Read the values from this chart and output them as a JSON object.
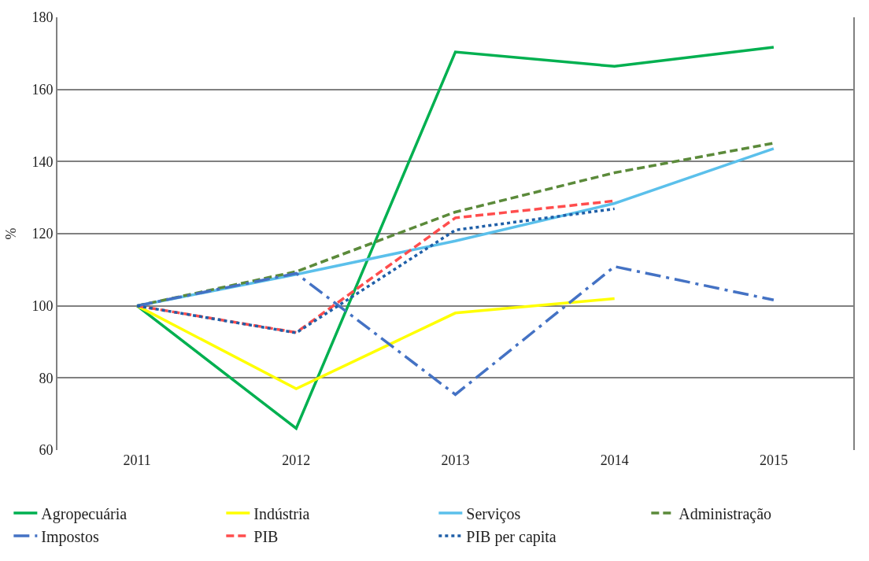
{
  "chart_data": {
    "type": "line",
    "ylabel": "%",
    "categories": [
      "2011",
      "2012",
      "2013",
      "2014",
      "2015"
    ],
    "series": [
      {
        "name": "Agropecuária",
        "color": "#00b050",
        "line_style": "solid",
        "values": [
          100,
          66,
          170.4,
          166.4,
          171.7
        ]
      },
      {
        "name": "Indústria",
        "color": "#ffff00",
        "line_style": "solid",
        "values": [
          100,
          77,
          98,
          102,
          null
        ]
      },
      {
        "name": "Serviços",
        "color": "#5bc0eb",
        "line_style": "solid",
        "values": [
          100,
          108.7,
          118,
          128.4,
          143.6
        ]
      },
      {
        "name": "Administração",
        "color": "#5b8a3a",
        "line_style": "dashed",
        "values": [
          100,
          109.5,
          126,
          136.9,
          145.1
        ]
      },
      {
        "name": "Impostos",
        "color": "#4472c4",
        "line_style": "dashdot",
        "values": [
          100,
          109,
          75.4,
          110.9,
          101.6
        ]
      },
      {
        "name": "PIB",
        "color": "#ff4d4d",
        "line_style": "dashed",
        "values": [
          100,
          92.6,
          124.4,
          129.1,
          null
        ]
      },
      {
        "name": "PIB per capita",
        "color": "#1f5fa8",
        "line_style": "dotted",
        "values": [
          100,
          92.5,
          121,
          126.9,
          null
        ]
      }
    ],
    "ylim": [
      60,
      180
    ],
    "yticks": [
      60,
      80,
      100,
      120,
      140,
      160,
      180
    ],
    "grid": "y",
    "legend": "bottom"
  }
}
